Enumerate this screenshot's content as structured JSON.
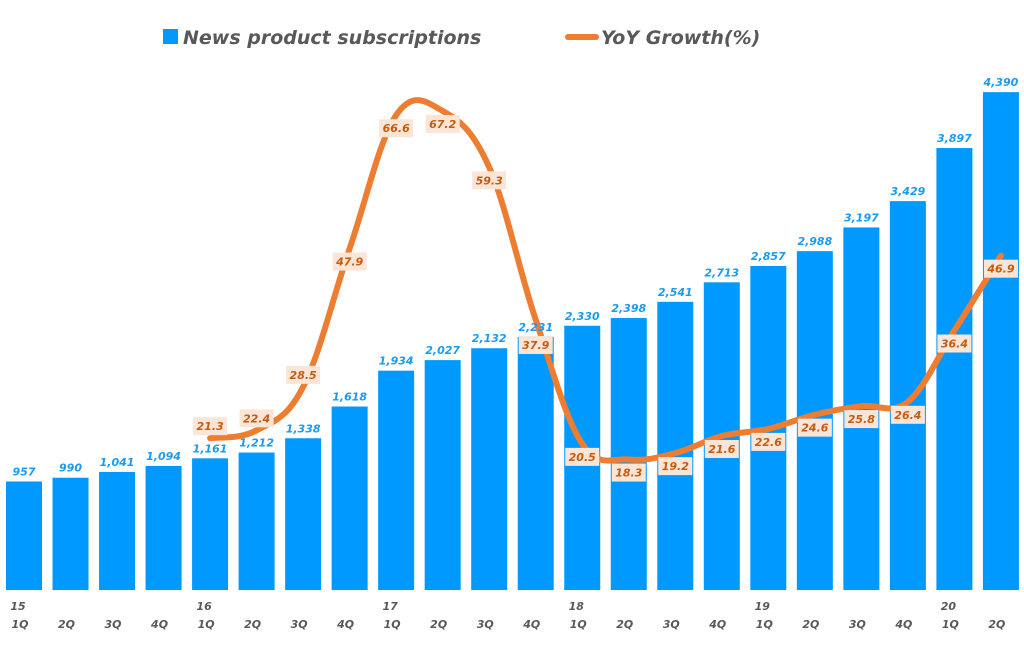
{
  "chart_data": {
    "type": "bar+line",
    "title": "",
    "xlabel": "",
    "ylabel": "",
    "colors": {
      "bars": "#0099ff",
      "line": "#ed7d31",
      "bar_label": "#1a9bf0",
      "line_label": "#c55a11",
      "line_label_bg": "#fbe5d6"
    },
    "legend": {
      "placement": "top",
      "entries": [
        {
          "name": "News product subscriptions",
          "kind": "bar"
        },
        {
          "name": "YoY Growth(%)",
          "kind": "line"
        }
      ]
    },
    "categories": [
      {
        "q": "1Q",
        "year": "15"
      },
      {
        "q": "2Q"
      },
      {
        "q": "3Q"
      },
      {
        "q": "4Q"
      },
      {
        "q": "1Q",
        "year": "16"
      },
      {
        "q": "2Q"
      },
      {
        "q": "3Q"
      },
      {
        "q": "4Q"
      },
      {
        "q": "1Q",
        "year": "17"
      },
      {
        "q": "2Q"
      },
      {
        "q": "3Q"
      },
      {
        "q": "4Q"
      },
      {
        "q": "1Q",
        "year": "18"
      },
      {
        "q": "2Q"
      },
      {
        "q": "3Q"
      },
      {
        "q": "4Q"
      },
      {
        "q": "1Q",
        "year": "19"
      },
      {
        "q": "2Q"
      },
      {
        "q": "3Q"
      },
      {
        "q": "4Q"
      },
      {
        "q": "1Q",
        "year": "20"
      },
      {
        "q": "2Q"
      }
    ],
    "series": [
      {
        "name": "News product subscriptions",
        "type": "bar",
        "axis": "left",
        "values": [
          957,
          990,
          1041,
          1094,
          1161,
          1212,
          1338,
          1618,
          1934,
          2027,
          2132,
          2231,
          2330,
          2398,
          2541,
          2713,
          2857,
          2988,
          3197,
          3429,
          3897,
          4390
        ]
      },
      {
        "name": "YoY Growth(%)",
        "type": "line",
        "axis": "right",
        "values": [
          null,
          null,
          null,
          null,
          21.3,
          22.4,
          28.5,
          47.9,
          66.6,
          67.2,
          59.3,
          37.9,
          20.5,
          18.3,
          19.2,
          21.6,
          22.6,
          24.6,
          25.8,
          26.4,
          36.4,
          46.9
        ]
      }
    ],
    "ylim_left": [
      0,
      4400
    ],
    "ylim_right": [
      0,
      70
    ],
    "grid": false,
    "axes_visible": false
  }
}
